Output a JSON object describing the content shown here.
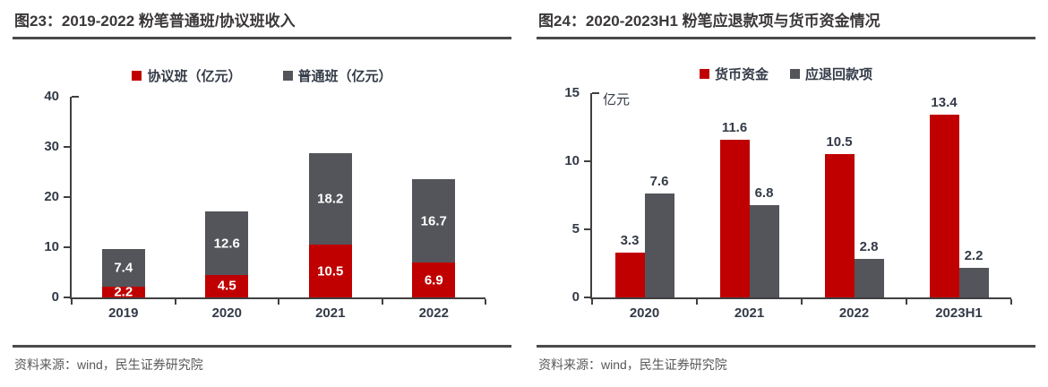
{
  "page": {
    "background": "#ffffff"
  },
  "styles": {
    "accent_red": "#c00000",
    "bar_gray": "#54555b",
    "axis_color": "#404040",
    "label_color": "#333a47",
    "title_color": "#3b3838",
    "rule_color": "#4a4a4a",
    "source_color": "#595959"
  },
  "chart_data": [
    {
      "type": "bar",
      "variant": "stacked",
      "title": "图23：2019-2022 粉笔普通班/协议班收入",
      "categories": [
        "2019",
        "2020",
        "2021",
        "2022"
      ],
      "series": [
        {
          "name": "协议班（亿元）",
          "color": "#c00000",
          "values": [
            2.2,
            4.5,
            10.5,
            6.9
          ]
        },
        {
          "name": "普通班（亿元）",
          "color": "#54555b",
          "values": [
            7.4,
            12.6,
            18.2,
            16.7
          ]
        }
      ],
      "ylim": [
        0,
        40
      ],
      "yticks": [
        0,
        10,
        20,
        30,
        40
      ],
      "legend_position": "top",
      "grid": false,
      "value_labels": "inside",
      "source": "资料来源：wind，民生证券研究院"
    },
    {
      "type": "bar",
      "variant": "grouped",
      "title": "图24：2020-2023H1 粉笔应退款项与货币资金情况",
      "unit_label": "亿元",
      "categories": [
        "2020",
        "2021",
        "2022",
        "2023H1"
      ],
      "series": [
        {
          "name": "货币资金",
          "color": "#c00000",
          "values": [
            3.3,
            11.6,
            10.5,
            13.4
          ]
        },
        {
          "name": "应退回款项",
          "color": "#54555b",
          "values": [
            7.6,
            6.8,
            2.8,
            2.2
          ]
        }
      ],
      "ylim": [
        0,
        15
      ],
      "yticks": [
        0,
        5,
        10,
        15
      ],
      "legend_position": "top",
      "grid": false,
      "value_labels": "above",
      "source": "资料来源：wind，民生证券研究院"
    }
  ]
}
